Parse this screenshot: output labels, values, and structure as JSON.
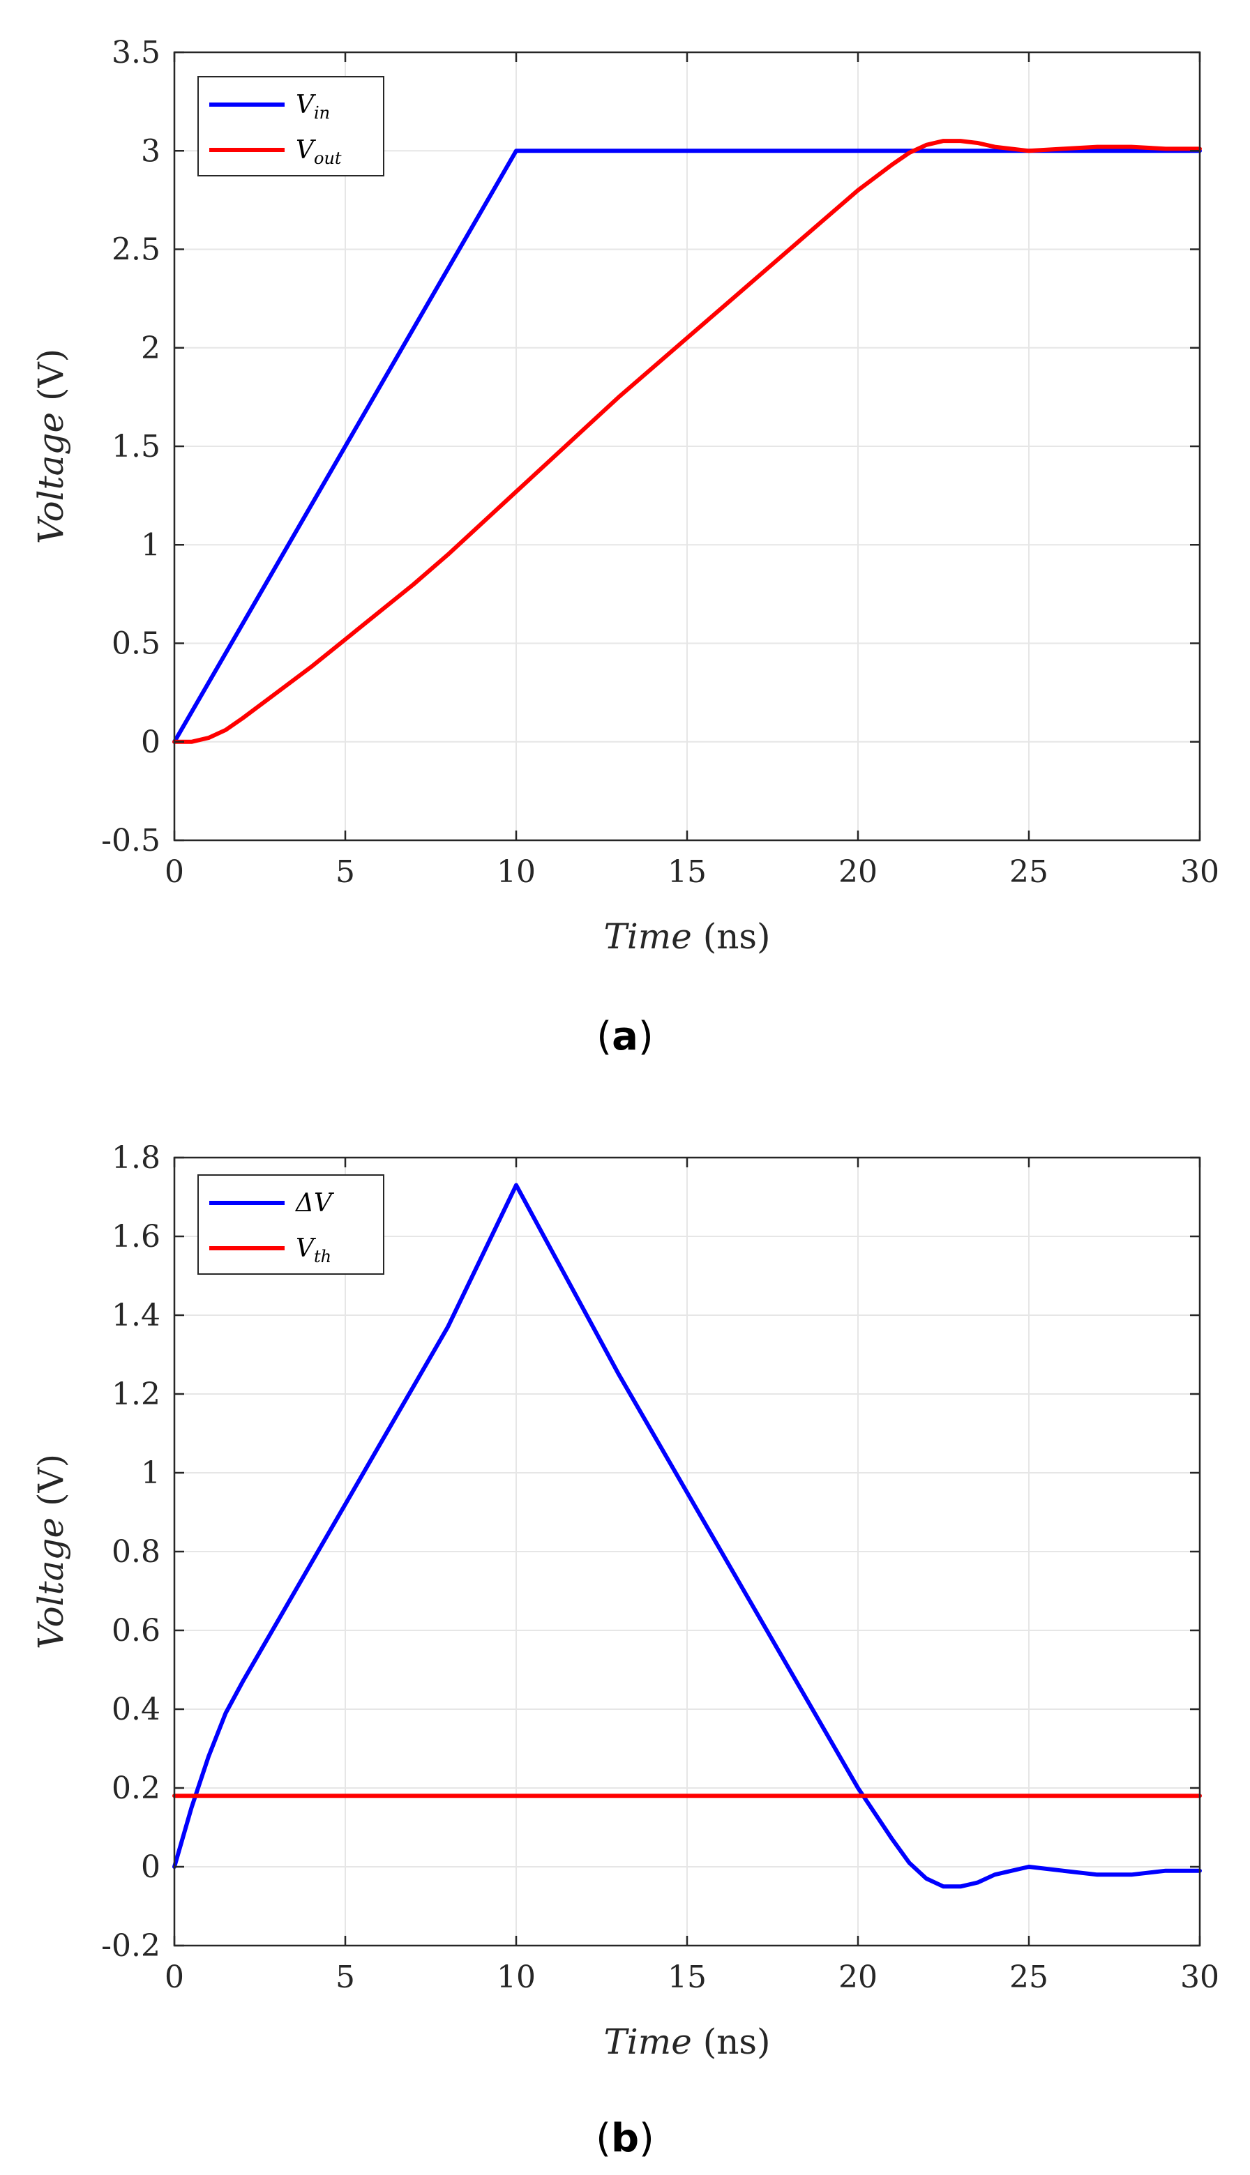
{
  "chart_data": [
    {
      "type": "line",
      "panel_label": "a",
      "xlabel_var": "Time",
      "xlabel_unit": "(ns)",
      "ylabel_var": "Voltage",
      "ylabel_unit": "(V)",
      "xlim": [
        0,
        30
      ],
      "ylim": [
        -0.5,
        3.5
      ],
      "xticks": [
        0,
        5,
        10,
        15,
        20,
        25,
        30
      ],
      "xtick_labels": [
        "0",
        "5",
        "10",
        "15",
        "20",
        "25",
        "30"
      ],
      "yticks": [
        -0.5,
        0,
        0.5,
        1,
        1.5,
        2,
        2.5,
        3,
        3.5
      ],
      "ytick_labels": [
        "-0.5",
        "0",
        "0.5",
        "1",
        "1.5",
        "2",
        "2.5",
        "3",
        "3.5"
      ],
      "grid": true,
      "legend_position": "top-left",
      "series": [
        {
          "name": "V_in",
          "legend_main": "V",
          "legend_sub": "in",
          "color": "#0000ff",
          "x": [
            0,
            10,
            30
          ],
          "y": [
            0,
            3,
            3
          ]
        },
        {
          "name": "V_out",
          "legend_main": "V",
          "legend_sub": "out",
          "color": "#ff0000",
          "x": [
            0,
            0.5,
            1,
            1.5,
            2,
            3,
            4,
            5,
            6,
            7,
            8,
            9,
            10,
            11,
            12,
            13,
            14,
            15,
            16,
            17,
            18,
            19,
            20,
            21,
            21.5,
            22,
            22.5,
            23,
            23.5,
            24,
            25,
            26,
            27,
            28,
            29,
            30
          ],
          "y": [
            0,
            0,
            0.02,
            0.06,
            0.12,
            0.25,
            0.38,
            0.52,
            0.66,
            0.8,
            0.95,
            1.11,
            1.27,
            1.43,
            1.59,
            1.75,
            1.9,
            2.05,
            2.2,
            2.35,
            2.5,
            2.65,
            2.8,
            2.93,
            2.99,
            3.03,
            3.05,
            3.05,
            3.04,
            3.02,
            3.0,
            3.01,
            3.02,
            3.02,
            3.01,
            3.01
          ]
        }
      ]
    },
    {
      "type": "line",
      "panel_label": "b",
      "xlabel_var": "Time",
      "xlabel_unit": "(ns)",
      "ylabel_var": "Voltage",
      "ylabel_unit": "(V)",
      "xlim": [
        0,
        30
      ],
      "ylim": [
        -0.2,
        1.8
      ],
      "xticks": [
        0,
        5,
        10,
        15,
        20,
        25,
        30
      ],
      "xtick_labels": [
        "0",
        "5",
        "10",
        "15",
        "20",
        "25",
        "30"
      ],
      "yticks": [
        -0.2,
        0,
        0.2,
        0.4,
        0.6,
        0.8,
        1,
        1.2,
        1.4,
        1.6,
        1.8
      ],
      "ytick_labels": [
        "-0.2",
        "0",
        "0.2",
        "0.4",
        "0.6",
        "0.8",
        "1",
        "1.2",
        "1.4",
        "1.6",
        "1.8"
      ],
      "grid": true,
      "legend_position": "top-left",
      "series": [
        {
          "name": "ΔV",
          "legend_main": "ΔV",
          "legend_sub": "",
          "color": "#0000ff",
          "x": [
            0,
            0.5,
            1,
            1.5,
            2,
            3,
            4,
            5,
            6,
            7,
            8,
            9,
            10,
            11,
            12,
            13,
            14,
            15,
            16,
            17,
            18,
            19,
            20,
            21,
            21.5,
            22,
            22.5,
            23,
            23.5,
            24,
            25,
            26,
            27,
            28,
            29,
            30
          ],
          "y": [
            0,
            0.15,
            0.28,
            0.39,
            0.47,
            0.62,
            0.77,
            0.92,
            1.07,
            1.22,
            1.37,
            1.55,
            1.73,
            1.57,
            1.41,
            1.25,
            1.1,
            0.95,
            0.8,
            0.65,
            0.5,
            0.35,
            0.2,
            0.07,
            0.01,
            -0.03,
            -0.05,
            -0.05,
            -0.04,
            -0.02,
            0.0,
            -0.01,
            -0.02,
            -0.02,
            -0.01,
            -0.01
          ]
        },
        {
          "name": "V_th",
          "legend_main": "V",
          "legend_sub": "th",
          "color": "#ff0000",
          "x": [
            0,
            30
          ],
          "y": [
            0.18,
            0.18
          ]
        }
      ]
    }
  ]
}
